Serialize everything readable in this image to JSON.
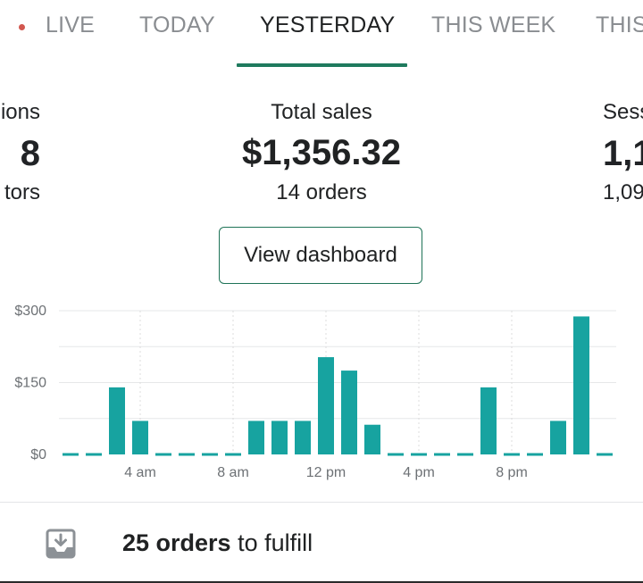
{
  "tabs": [
    {
      "label": "LIVE",
      "live_indicator": true,
      "active": false
    },
    {
      "label": "TODAY",
      "active": false
    },
    {
      "label": "YESTERDAY",
      "active": true
    },
    {
      "label": "THIS WEEK",
      "active": false
    },
    {
      "label": "THIS",
      "active": false
    }
  ],
  "metrics": {
    "left": {
      "label": "ions",
      "value": "8",
      "sub": "tors"
    },
    "center": {
      "label": "Total sales",
      "value": "$1,356.32",
      "sub": "14 orders"
    },
    "right": {
      "label": "Sess",
      "value": "1,1",
      "sub": "1,09"
    }
  },
  "dashboard_button": {
    "label": "View dashboard"
  },
  "chart_data": {
    "type": "bar",
    "title": "",
    "xlabel": "",
    "ylabel": "",
    "ylim": [
      0,
      300
    ],
    "y_ticks": [
      "$0",
      "$150",
      "$300"
    ],
    "y_tick_values": [
      0,
      150,
      300
    ],
    "x_tick_labels": [
      {
        "hour": 4,
        "label": "4 am"
      },
      {
        "hour": 8,
        "label": "8 am"
      },
      {
        "hour": 12,
        "label": "12 pm"
      },
      {
        "hour": 16,
        "label": "4 pm"
      },
      {
        "hour": 20,
        "label": "8 pm"
      }
    ],
    "categories": [
      0,
      1,
      2,
      3,
      4,
      5,
      6,
      7,
      8,
      9,
      10,
      11,
      12,
      13,
      14,
      15,
      16,
      17,
      18,
      19,
      20,
      21,
      22,
      23
    ],
    "values": [
      0,
      0,
      140,
      70,
      0,
      0,
      0,
      0,
      70,
      70,
      70,
      203,
      175,
      62,
      0,
      0,
      0,
      0,
      140,
      0,
      0,
      70,
      288,
      0
    ],
    "bar_color": "#17a3a0",
    "zero_dash_color": "#17a3a0",
    "grid": true
  },
  "footer": {
    "icon": "download-tray-icon",
    "count_text": "25 orders",
    "rest_text": " to fulfill"
  }
}
